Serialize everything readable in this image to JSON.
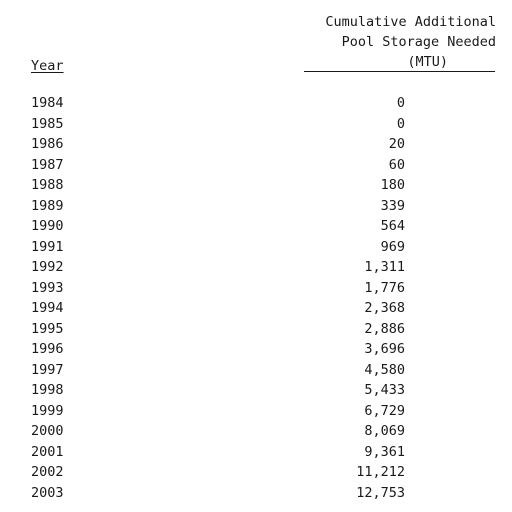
{
  "header": {
    "year_label": "Year",
    "value_label_lines": [
      "Cumulative Additional",
      "Pool Storage Needed",
      "(MTU)"
    ]
  },
  "rows": [
    {
      "year": "1984",
      "value": "0"
    },
    {
      "year": "1985",
      "value": "0"
    },
    {
      "year": "1986",
      "value": "20"
    },
    {
      "year": "1987",
      "value": "60"
    },
    {
      "year": "1988",
      "value": "180"
    },
    {
      "year": "1989",
      "value": "339"
    },
    {
      "year": "1990",
      "value": "564"
    },
    {
      "year": "1991",
      "value": "969"
    },
    {
      "year": "1992",
      "value": "1,311"
    },
    {
      "year": "1993",
      "value": "1,776"
    },
    {
      "year": "1994",
      "value": "2,368"
    },
    {
      "year": "1995",
      "value": "2,886"
    },
    {
      "year": "1996",
      "value": "3,696"
    },
    {
      "year": "1997",
      "value": "4,580"
    },
    {
      "year": "1998",
      "value": "5,433"
    },
    {
      "year": "1999",
      "value": "6,729"
    },
    {
      "year": "2000",
      "value": "8,069"
    },
    {
      "year": "2001",
      "value": "9,361"
    },
    {
      "year": "2002",
      "value": "11,212"
    },
    {
      "year": "2003",
      "value": "12,753"
    }
  ]
}
